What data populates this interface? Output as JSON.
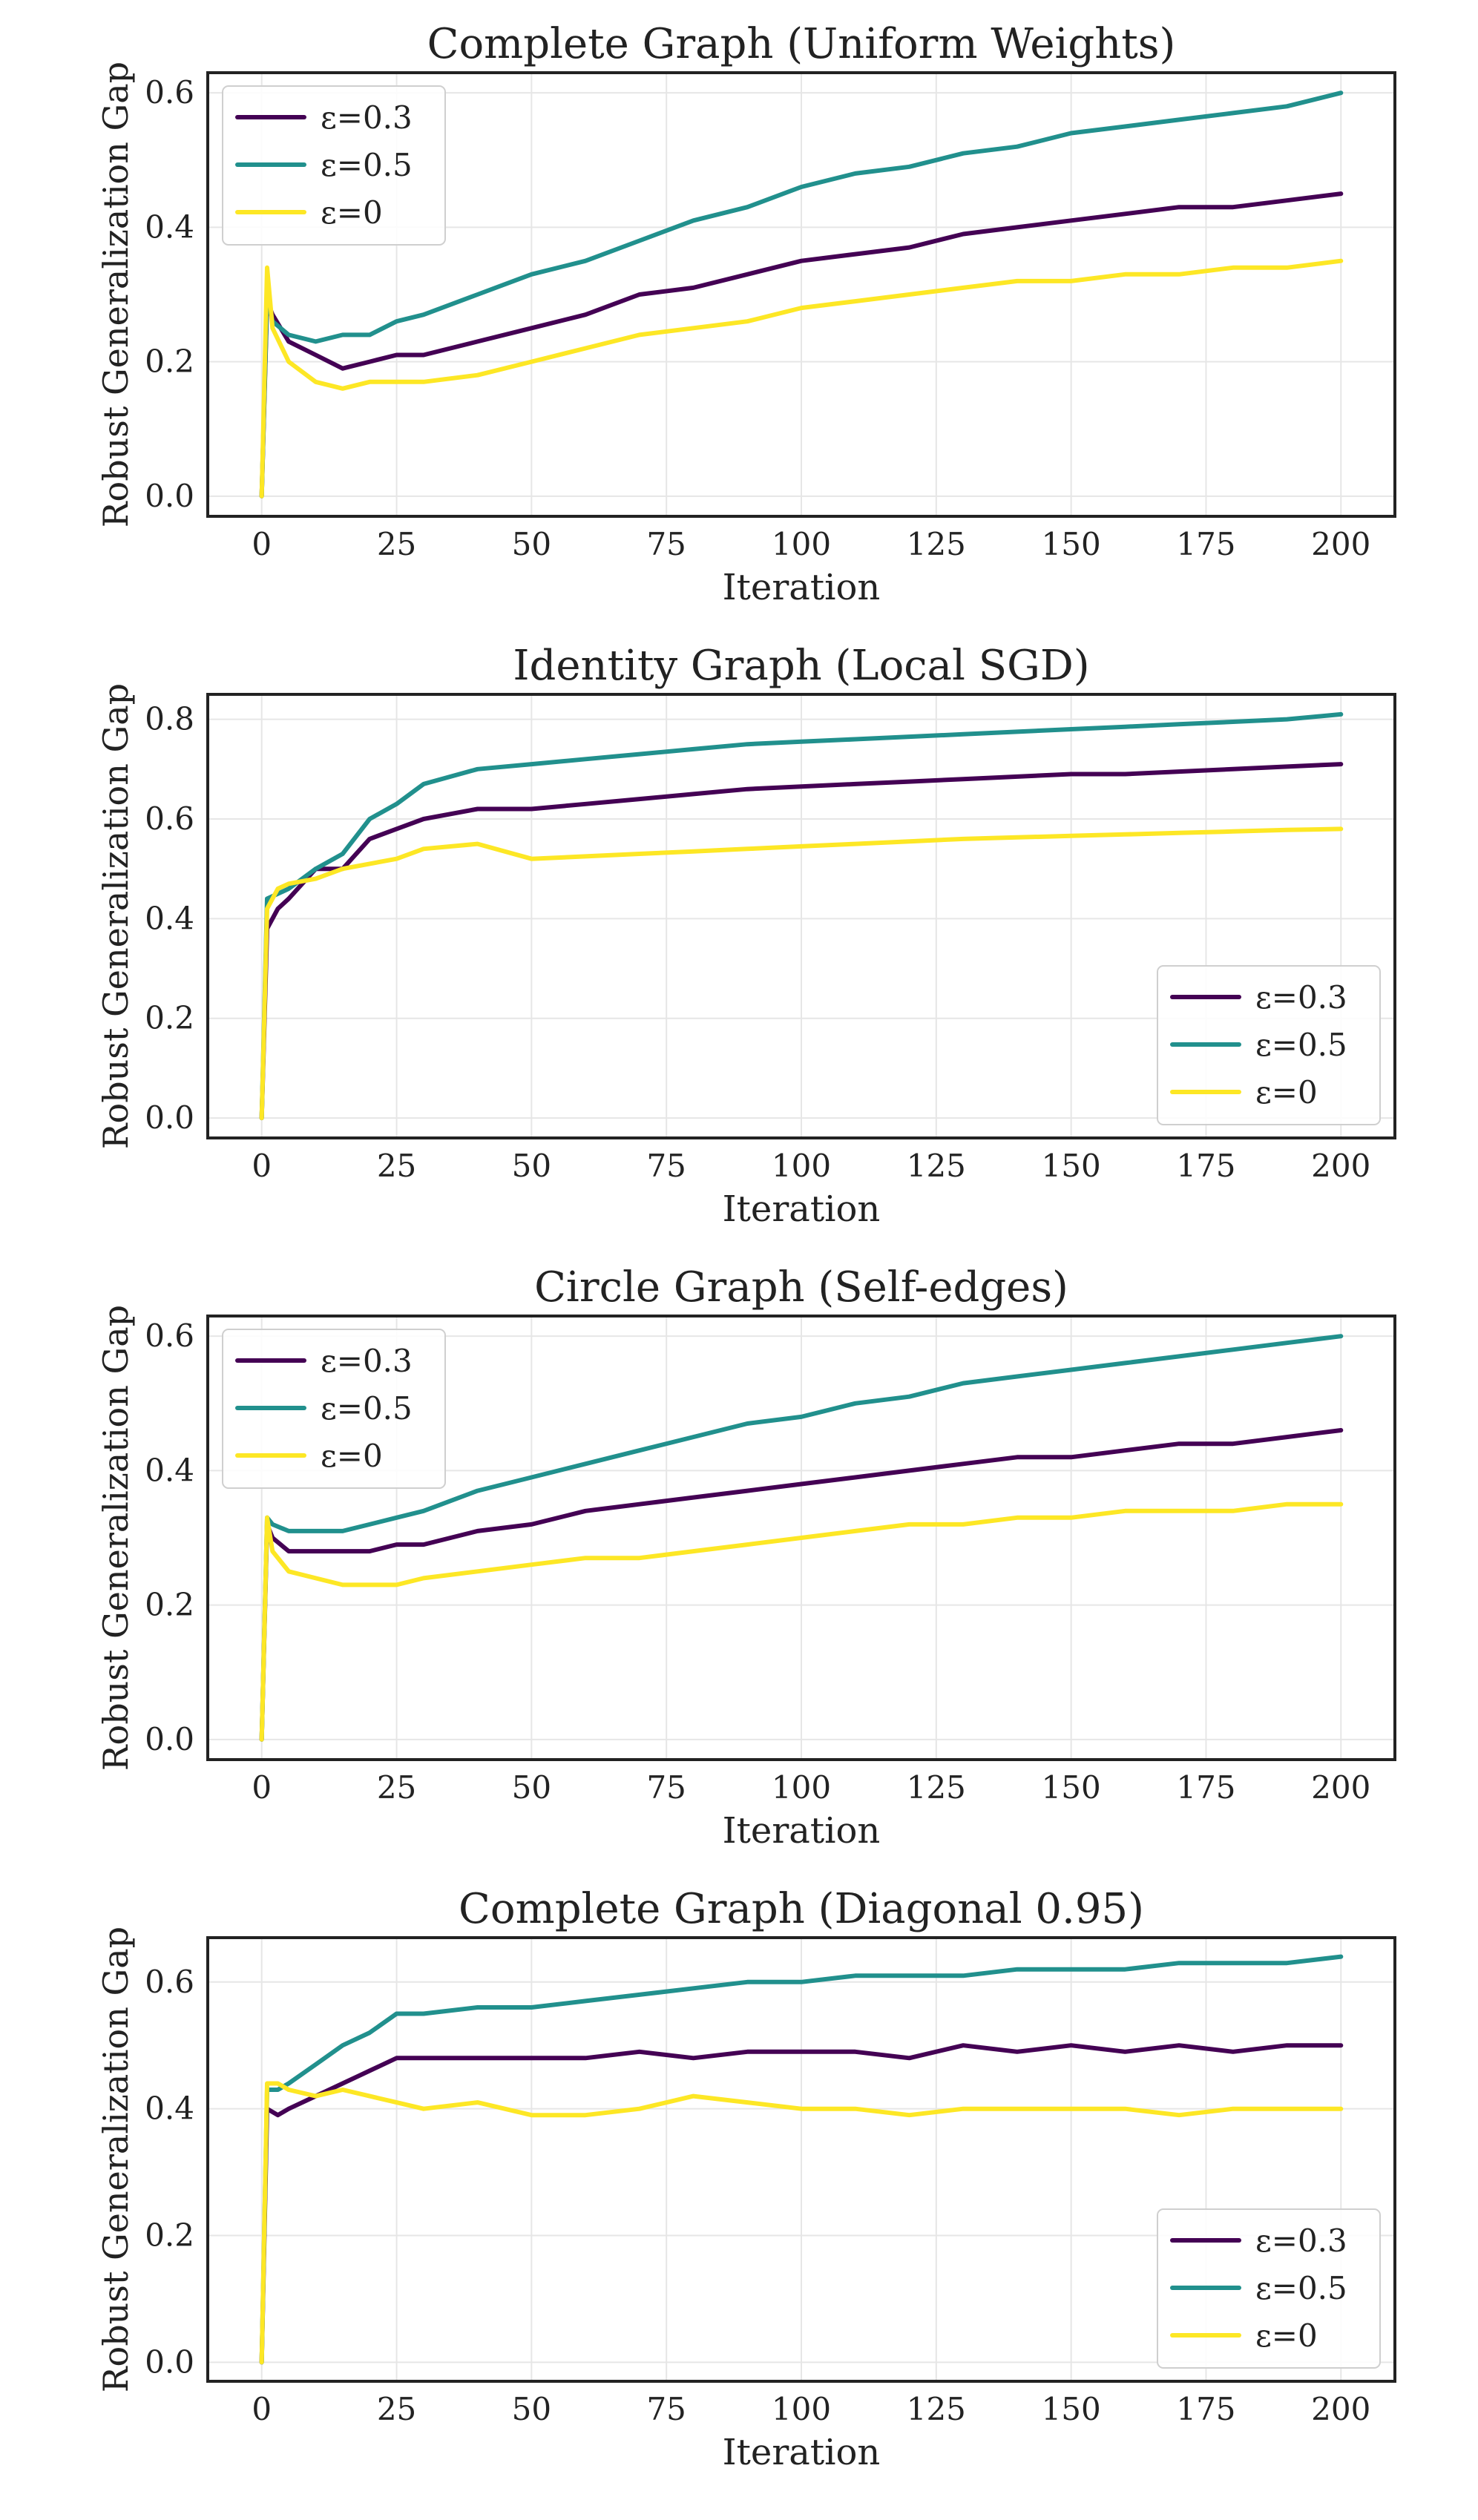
{
  "figure": {
    "colors": {
      "eps_0_3": "#440154",
      "eps_0_5": "#21908d",
      "eps_0": "#fde725",
      "grid": "#e6e6e6",
      "axes": "#222222"
    },
    "panels": [
      {
        "title": "Complete Graph (Uniform Weights)",
        "xlabel": "Iteration",
        "ylabel": "Robust Generalization Gap",
        "legend_loc": "top-left",
        "legend": [
          "ε=0.3",
          "ε=0.5",
          "ε=0"
        ],
        "xticks": [
          "0",
          "25",
          "50",
          "75",
          "100",
          "125",
          "150",
          "175",
          "200"
        ],
        "yticks": [
          "0.0",
          "0.2",
          "0.4",
          "0.6"
        ]
      },
      {
        "title": "Identity Graph (Local SGD)",
        "xlabel": "Iteration",
        "ylabel": "Robust Generalization Gap",
        "legend_loc": "bottom-right",
        "legend": [
          "ε=0.3",
          "ε=0.5",
          "ε=0"
        ],
        "xticks": [
          "0",
          "25",
          "50",
          "75",
          "100",
          "125",
          "150",
          "175",
          "200"
        ],
        "yticks": [
          "0.0",
          "0.2",
          "0.4",
          "0.6",
          "0.8"
        ]
      },
      {
        "title": "Circle Graph (Self-edges)",
        "xlabel": "Iteration",
        "ylabel": "Robust Generalization Gap",
        "legend_loc": "top-left",
        "legend": [
          "ε=0.3",
          "ε=0.5",
          "ε=0"
        ],
        "xticks": [
          "0",
          "25",
          "50",
          "75",
          "100",
          "125",
          "150",
          "175",
          "200"
        ],
        "yticks": [
          "0.0",
          "0.2",
          "0.4",
          "0.6"
        ]
      },
      {
        "title": "Complete Graph (Diagonal 0.95)",
        "xlabel": "Iteration",
        "ylabel": "Robust Generalization Gap",
        "legend_loc": "bottom-right",
        "legend": [
          "ε=0.3",
          "ε=0.5",
          "ε=0"
        ],
        "xticks": [
          "0",
          "25",
          "50",
          "75",
          "100",
          "125",
          "150",
          "175",
          "200"
        ],
        "yticks": [
          "0.0",
          "0.2",
          "0.4",
          "0.6"
        ]
      }
    ]
  },
  "chart_data": [
    {
      "type": "line",
      "title": "Complete Graph (Uniform Weights)",
      "xlabel": "Iteration",
      "ylabel": "Robust Generalization Gap",
      "xlim": [
        -10,
        210
      ],
      "ylim": [
        -0.03,
        0.63
      ],
      "grid": true,
      "legend": "top-left",
      "x": [
        0,
        1,
        2,
        5,
        10,
        15,
        20,
        25,
        30,
        40,
        50,
        60,
        70,
        80,
        90,
        100,
        110,
        120,
        130,
        140,
        150,
        160,
        170,
        180,
        190,
        200
      ],
      "series": [
        {
          "name": "ε=0.3",
          "color": "#440154",
          "values": [
            0.0,
            0.29,
            0.27,
            0.23,
            0.21,
            0.19,
            0.2,
            0.21,
            0.21,
            0.23,
            0.25,
            0.27,
            0.3,
            0.31,
            0.33,
            0.35,
            0.36,
            0.37,
            0.39,
            0.4,
            0.41,
            0.42,
            0.43,
            0.43,
            0.44,
            0.45
          ]
        },
        {
          "name": "ε=0.5",
          "color": "#21908d",
          "values": [
            0.0,
            0.3,
            0.26,
            0.24,
            0.23,
            0.24,
            0.24,
            0.26,
            0.27,
            0.3,
            0.33,
            0.35,
            0.38,
            0.41,
            0.43,
            0.46,
            0.48,
            0.49,
            0.51,
            0.52,
            0.54,
            0.55,
            0.56,
            0.57,
            0.58,
            0.6
          ]
        },
        {
          "name": "ε=0",
          "color": "#fde725",
          "values": [
            0.0,
            0.34,
            0.25,
            0.2,
            0.17,
            0.16,
            0.17,
            0.17,
            0.17,
            0.18,
            0.2,
            0.22,
            0.24,
            0.25,
            0.26,
            0.28,
            0.29,
            0.3,
            0.31,
            0.32,
            0.32,
            0.33,
            0.33,
            0.34,
            0.34,
            0.35
          ]
        }
      ]
    },
    {
      "type": "line",
      "title": "Identity Graph (Local SGD)",
      "xlabel": "Iteration",
      "ylabel": "Robust Generalization Gap",
      "xlim": [
        -10,
        210
      ],
      "ylim": [
        -0.04,
        0.85
      ],
      "grid": true,
      "legend": "bottom-right",
      "x": [
        0,
        1,
        3,
        5,
        10,
        15,
        20,
        25,
        30,
        40,
        50,
        60,
        70,
        80,
        90,
        100,
        110,
        120,
        130,
        140,
        150,
        160,
        170,
        180,
        190,
        200
      ],
      "series": [
        {
          "name": "ε=0.3",
          "color": "#440154",
          "values": [
            0.0,
            0.38,
            0.42,
            0.44,
            0.5,
            0.5,
            0.56,
            0.58,
            0.6,
            0.62,
            0.62,
            0.63,
            0.64,
            0.65,
            0.66,
            0.665,
            0.67,
            0.675,
            0.68,
            0.685,
            0.69,
            0.69,
            0.695,
            0.7,
            0.705,
            0.71
          ]
        },
        {
          "name": "ε=0.5",
          "color": "#21908d",
          "values": [
            0.0,
            0.44,
            0.45,
            0.46,
            0.5,
            0.53,
            0.6,
            0.63,
            0.67,
            0.7,
            0.71,
            0.72,
            0.73,
            0.74,
            0.75,
            0.755,
            0.76,
            0.765,
            0.77,
            0.775,
            0.78,
            0.785,
            0.79,
            0.795,
            0.8,
            0.81
          ]
        },
        {
          "name": "ε=0",
          "color": "#fde725",
          "values": [
            0.0,
            0.42,
            0.46,
            0.47,
            0.48,
            0.5,
            0.51,
            0.52,
            0.54,
            0.55,
            0.52,
            0.525,
            0.53,
            0.535,
            0.54,
            0.545,
            0.55,
            0.555,
            0.56,
            0.563,
            0.566,
            0.569,
            0.572,
            0.575,
            0.578,
            0.58
          ]
        }
      ]
    },
    {
      "type": "line",
      "title": "Circle Graph (Self-edges)",
      "xlabel": "Iteration",
      "ylabel": "Robust Generalization Gap",
      "xlim": [
        -10,
        210
      ],
      "ylim": [
        -0.03,
        0.63
      ],
      "grid": true,
      "legend": "top-left",
      "x": [
        0,
        1,
        2,
        5,
        10,
        15,
        20,
        25,
        30,
        40,
        50,
        60,
        70,
        80,
        90,
        100,
        110,
        120,
        130,
        140,
        150,
        160,
        170,
        180,
        190,
        200
      ],
      "series": [
        {
          "name": "ε=0.3",
          "color": "#440154",
          "values": [
            0.0,
            0.32,
            0.3,
            0.28,
            0.28,
            0.28,
            0.28,
            0.29,
            0.29,
            0.31,
            0.32,
            0.34,
            0.35,
            0.36,
            0.37,
            0.38,
            0.39,
            0.4,
            0.41,
            0.42,
            0.42,
            0.43,
            0.44,
            0.44,
            0.45,
            0.46
          ]
        },
        {
          "name": "ε=0.5",
          "color": "#21908d",
          "values": [
            0.0,
            0.33,
            0.32,
            0.31,
            0.31,
            0.31,
            0.32,
            0.33,
            0.34,
            0.37,
            0.39,
            0.41,
            0.43,
            0.45,
            0.47,
            0.48,
            0.5,
            0.51,
            0.53,
            0.54,
            0.55,
            0.56,
            0.57,
            0.58,
            0.59,
            0.6
          ]
        },
        {
          "name": "ε=0",
          "color": "#fde725",
          "values": [
            0.0,
            0.33,
            0.28,
            0.25,
            0.24,
            0.23,
            0.23,
            0.23,
            0.24,
            0.25,
            0.26,
            0.27,
            0.27,
            0.28,
            0.29,
            0.3,
            0.31,
            0.32,
            0.32,
            0.33,
            0.33,
            0.34,
            0.34,
            0.34,
            0.35,
            0.35
          ]
        }
      ]
    },
    {
      "type": "line",
      "title": "Complete Graph (Diagonal 0.95)",
      "xlabel": "Iteration",
      "ylabel": "Robust Generalization Gap",
      "xlim": [
        -10,
        210
      ],
      "ylim": [
        -0.03,
        0.67
      ],
      "grid": true,
      "legend": "bottom-right",
      "x": [
        0,
        1,
        3,
        5,
        10,
        15,
        20,
        25,
        30,
        40,
        50,
        60,
        70,
        80,
        90,
        100,
        110,
        120,
        130,
        140,
        150,
        160,
        170,
        180,
        190,
        200
      ],
      "series": [
        {
          "name": "ε=0.3",
          "color": "#440154",
          "values": [
            0.0,
            0.4,
            0.39,
            0.4,
            0.42,
            0.44,
            0.46,
            0.48,
            0.48,
            0.48,
            0.48,
            0.48,
            0.49,
            0.48,
            0.49,
            0.49,
            0.49,
            0.48,
            0.5,
            0.49,
            0.5,
            0.49,
            0.5,
            0.49,
            0.5,
            0.5
          ]
        },
        {
          "name": "ε=0.5",
          "color": "#21908d",
          "values": [
            0.0,
            0.43,
            0.43,
            0.44,
            0.47,
            0.5,
            0.52,
            0.55,
            0.55,
            0.56,
            0.56,
            0.57,
            0.58,
            0.59,
            0.6,
            0.6,
            0.61,
            0.61,
            0.61,
            0.62,
            0.62,
            0.62,
            0.63,
            0.63,
            0.63,
            0.64
          ]
        },
        {
          "name": "ε=0",
          "color": "#fde725",
          "values": [
            0.0,
            0.44,
            0.44,
            0.43,
            0.42,
            0.43,
            0.42,
            0.41,
            0.4,
            0.41,
            0.39,
            0.39,
            0.4,
            0.42,
            0.41,
            0.4,
            0.4,
            0.39,
            0.4,
            0.4,
            0.4,
            0.4,
            0.39,
            0.4,
            0.4,
            0.4
          ]
        }
      ]
    }
  ]
}
